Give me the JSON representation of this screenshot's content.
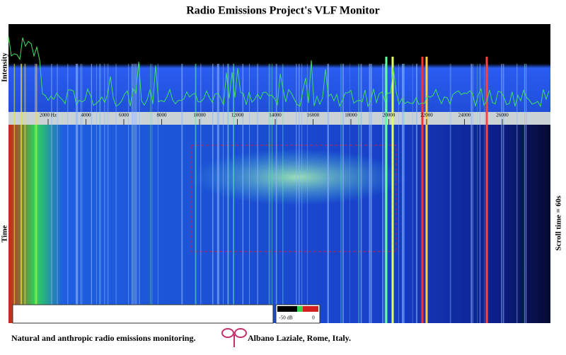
{
  "header": {
    "title": "Radio Emissions Project's VLF Monitor"
  },
  "axes": {
    "intensity_label": "Intensity",
    "time_label": "Time",
    "scroll_label": "Scroll time = 60s",
    "frequency_labels": [
      "2000 Hz",
      "4000",
      "6000",
      "8000",
      "10000",
      "12000",
      "14000",
      "16000",
      "18000",
      "20000",
      "22000",
      "24000",
      "26000"
    ]
  },
  "scale": {
    "min_label": "-50 dB",
    "max_label": "0"
  },
  "footer": {
    "left": "Natural and anthropic radio emissions monitoring.",
    "right": "Albano Laziale, Rome, Italy."
  }
}
